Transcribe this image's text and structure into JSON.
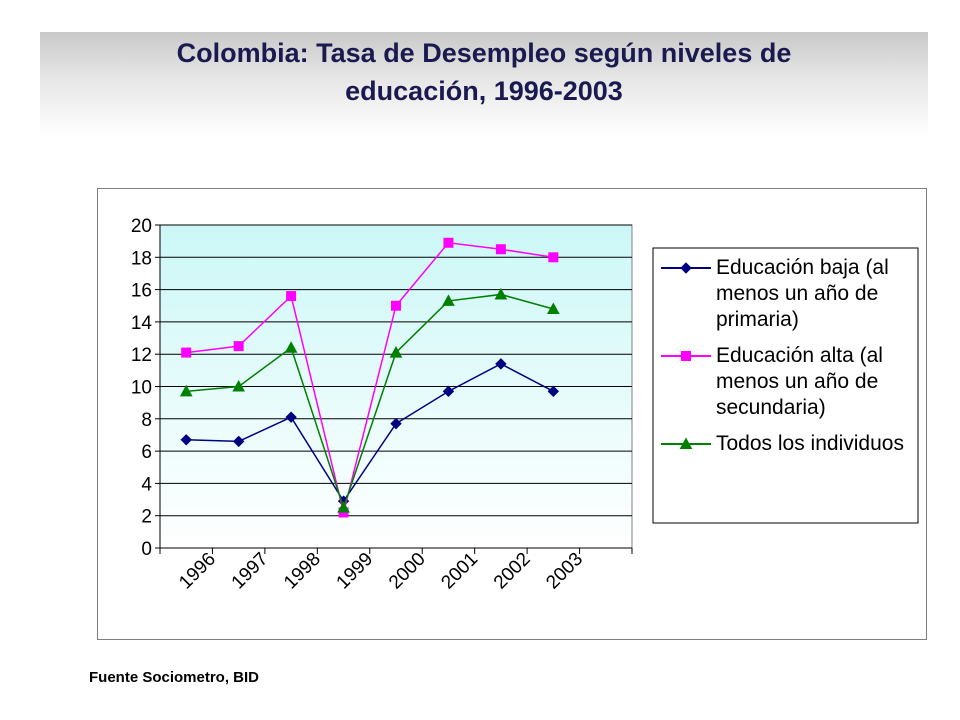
{
  "title": "Colombia: Tasa de Desempleo según niveles de\neducación, 1996-2003",
  "source": "Fuente Sociometro, BID",
  "chart_data": {
    "type": "line",
    "categories": [
      "1996",
      "1997",
      "1998",
      "1999",
      "2000",
      "2001",
      "2002",
      "2003"
    ],
    "ylim": [
      0,
      20
    ],
    "yticks": [
      "0",
      "2",
      "4",
      "6",
      "8",
      "10",
      "12",
      "14",
      "16",
      "18",
      "20"
    ],
    "grid": true,
    "legend_position": "right",
    "plot_background": [
      "#ccf7f7",
      "#ffffff"
    ],
    "series": [
      {
        "name": "Educación baja (al menos un año de primaria)",
        "legend_lines": [
          "Educación baja (al",
          "menos un año de",
          "primaria)"
        ],
        "color": "#000080",
        "marker": "diamond",
        "values": [
          6.7,
          6.6,
          8.1,
          2.9,
          7.7,
          9.7,
          11.4,
          9.7
        ]
      },
      {
        "name": "Educación alta (al menos un año de secundaria)",
        "legend_lines": [
          "Educación alta (al",
          "menos un año de",
          "secundaria)"
        ],
        "color": "#ff00ff",
        "marker": "square",
        "values": [
          12.1,
          12.5,
          15.6,
          2.2,
          15.0,
          18.9,
          18.5,
          18.0
        ]
      },
      {
        "name": "Todos los individuos",
        "legend_lines": [
          "Todos los individuos"
        ],
        "color": "#008000",
        "marker": "triangle",
        "values": [
          9.7,
          10.0,
          12.4,
          2.5,
          12.1,
          15.3,
          15.7,
          14.8
        ]
      }
    ]
  }
}
